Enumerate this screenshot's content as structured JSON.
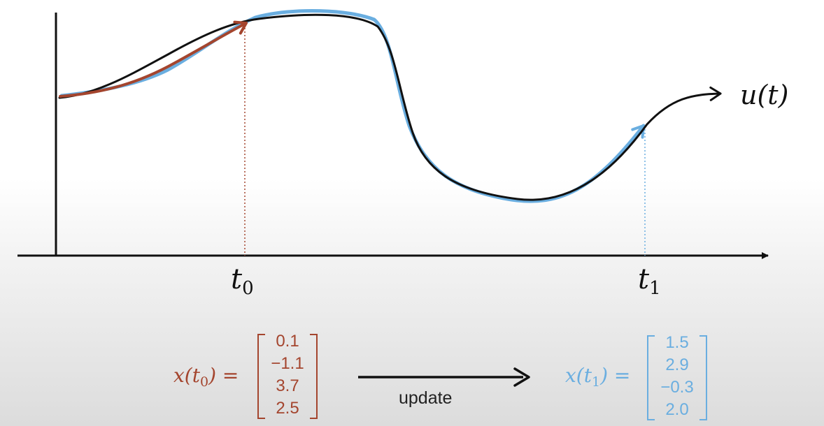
{
  "colors": {
    "curve": "#111111",
    "red": "#a4452e",
    "blue": "#6aaee0"
  },
  "curve_label": "u(t)",
  "t0_label": {
    "base": "t",
    "sub": "0"
  },
  "t1_label": {
    "base": "t",
    "sub": "1"
  },
  "x0": {
    "lhs_base": "x(t",
    "lhs_sub": "0",
    "lhs_close": ")",
    "equals": "=",
    "values": [
      "0.1",
      "−1.1",
      "3.7",
      "2.5"
    ]
  },
  "x1": {
    "lhs_base": "x(t",
    "lhs_sub": "1",
    "lhs_close": ")",
    "equals": "=",
    "values": [
      "1.5",
      "2.9",
      "−0.3",
      "2.0"
    ]
  },
  "update_label": "update"
}
